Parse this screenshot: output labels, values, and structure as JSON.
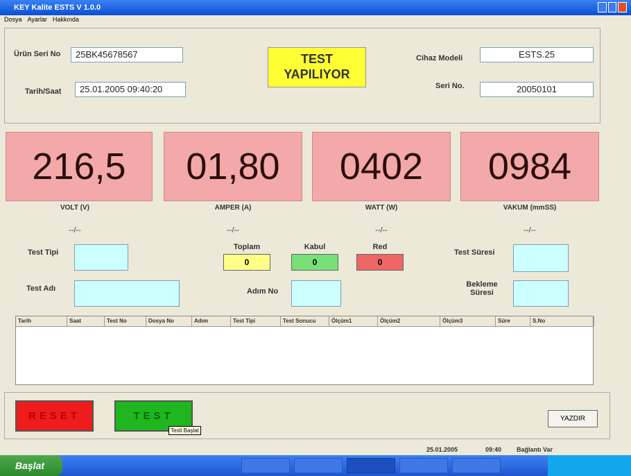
{
  "window": {
    "title": "KEY Kalite ESTS V 1.0.0",
    "menu": [
      "Dosya",
      "Ayarlar",
      "Hakkında"
    ]
  },
  "header": {
    "serial_label": "Ürün Seri No",
    "serial_value": "25BK45678567",
    "date_label": "Tarih/Saat",
    "date_value": "25.01.2005 09:40:20",
    "status": "TEST YAPILIYOR",
    "model_label": "Cihaz Modeli",
    "model_value": "ESTS.25",
    "device_serial_label": "Seri No.",
    "device_serial_value": "20050101"
  },
  "displays": [
    {
      "value": "216,5",
      "unit": "VOLT (V)",
      "sub": "--/--"
    },
    {
      "value": "01,80",
      "unit": "AMPER (A)",
      "sub": "--/--"
    },
    {
      "value": "0402",
      "unit": "WATT (W)",
      "sub": "--/--"
    },
    {
      "value": "0984",
      "unit": "VAKUM (mmSS)",
      "sub": "--/--"
    }
  ],
  "form": {
    "test_type": "Test Tipi",
    "test_name": "Test Adı",
    "step_no": "Adım No",
    "test_duration": "Test Süresi",
    "wait_duration": "Bekleme Süresi"
  },
  "counters": [
    {
      "label": "Toplam",
      "value": "0"
    },
    {
      "label": "Kabul",
      "value": "0"
    },
    {
      "label": "Red",
      "value": "0"
    }
  ],
  "table": {
    "columns": [
      "Tarih",
      "Saat",
      "Test No",
      "Dosya No",
      "Adım",
      "Test Tipi",
      "Test Sonucu",
      "Ölçüm1",
      "Ölçüm2",
      "Ölçüm3",
      "Süre",
      "S.No"
    ]
  },
  "buttons": {
    "reset": "RESET",
    "test": "TEST",
    "tooltip": "Testi Başlat",
    "print": "YAZDIR"
  },
  "status": {
    "date": "25.01.2005",
    "time": "09:40",
    "connection": "Bağlantı Var"
  },
  "taskbar": {
    "start": "Başlat"
  }
}
